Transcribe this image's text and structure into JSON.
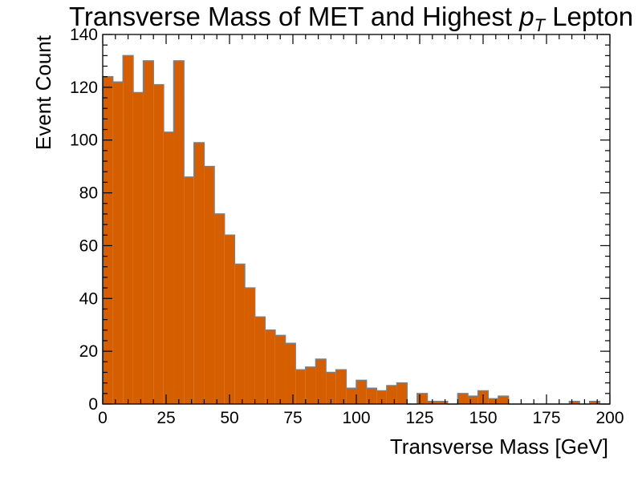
{
  "chart_data": {
    "type": "bar",
    "title_main": "Transverse Mass of MET and Highest ",
    "title_sym": "p",
    "title_sub": "T",
    "title_end": " Lepton",
    "xlabel": "Transverse Mass [GeV]",
    "ylabel": "Event Count",
    "xlim": [
      0,
      200
    ],
    "ylim": [
      0,
      140
    ],
    "xticks": [
      "0",
      "25",
      "50",
      "75",
      "100",
      "125",
      "150",
      "175",
      "200"
    ],
    "yticks": [
      "0",
      "20",
      "40",
      "60",
      "80",
      "100",
      "120",
      "140"
    ],
    "bin_width": 4,
    "bin_edges_start": 0,
    "values": [
      124,
      122,
      132,
      118,
      130,
      121,
      103,
      130,
      86,
      99,
      90,
      72,
      64,
      53,
      44,
      33,
      28,
      26,
      23,
      13,
      14,
      17,
      12,
      13,
      6,
      9,
      6,
      5,
      7,
      8,
      0,
      4,
      1,
      1,
      0,
      4,
      3,
      5,
      2,
      3,
      0,
      0,
      0,
      0,
      0,
      0,
      1,
      0,
      1,
      0
    ],
    "fill_color": "#d55e00",
    "edge_color": "#7f7f7f",
    "grid": false,
    "legend": false
  }
}
